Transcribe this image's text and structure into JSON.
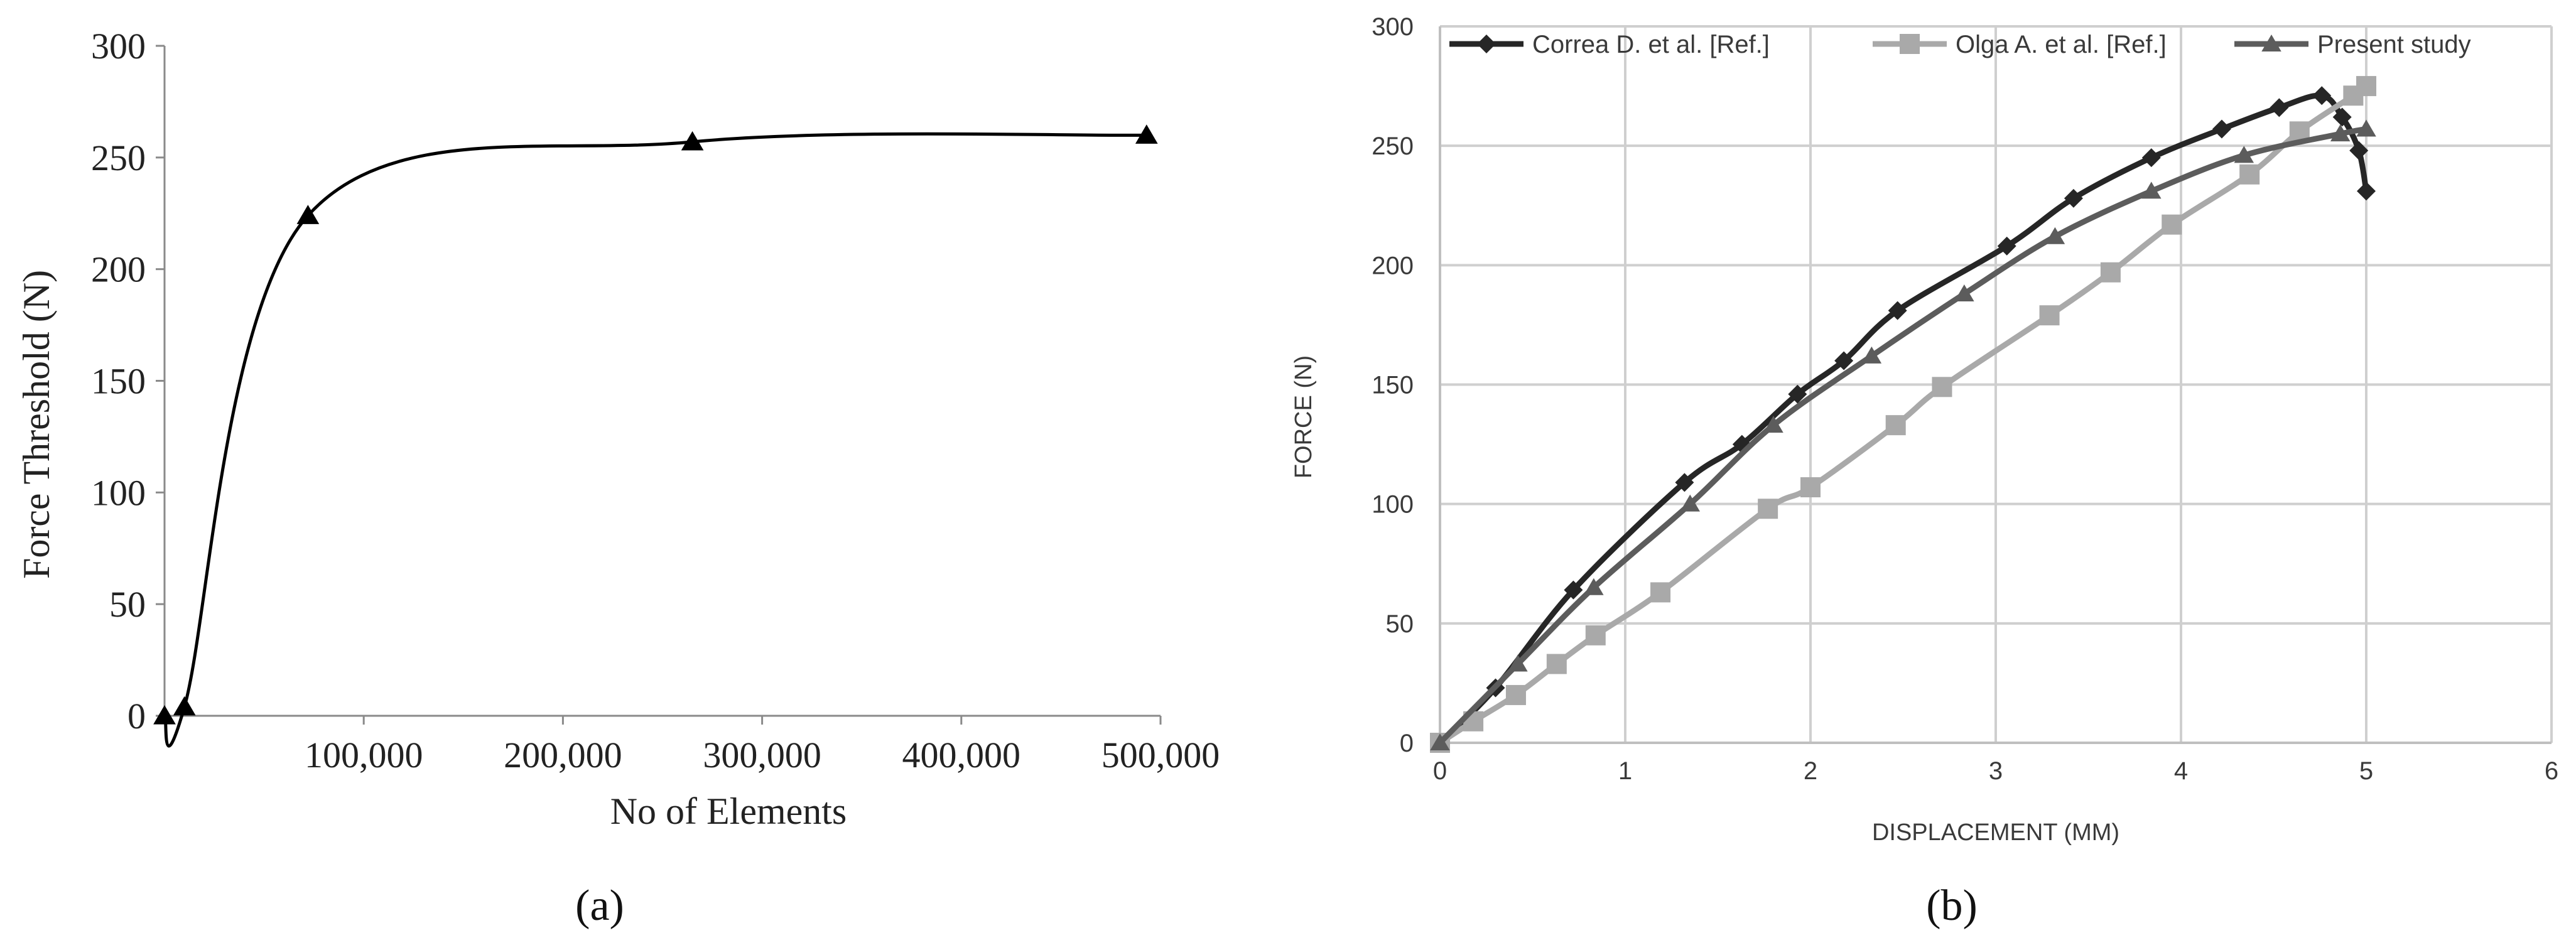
{
  "panel_labels": [
    "(a)",
    "(b)"
  ],
  "chart_data": [
    {
      "type": "line",
      "panel": "(a)",
      "title": "",
      "xlabel": "No of Elements",
      "ylabel": "Force Threshold (N)",
      "xlim": [
        0,
        500000
      ],
      "ylim": [
        0,
        300
      ],
      "xticks": [
        100000,
        200000,
        300000,
        400000,
        500000
      ],
      "xtick_labels": [
        "100,000",
        "200,000",
        "300,000",
        "400,000",
        "500,000"
      ],
      "yticks": [
        0,
        50,
        100,
        150,
        200,
        250,
        300
      ],
      "ytick_labels": [
        "0",
        "50",
        "100",
        "150",
        "200",
        "250",
        "300"
      ],
      "grid": false,
      "series": [
        {
          "marker": "triangle",
          "color": "#000000",
          "points": [
            [
              0,
              0
            ],
            [
              10000,
              4
            ],
            [
              72000,
              224
            ],
            [
              265000,
              257
            ],
            [
              493000,
              260
            ]
          ]
        }
      ]
    },
    {
      "type": "line",
      "panel": "(b)",
      "title": "",
      "xlabel": "DISPLACEMENT (MM)",
      "ylabel": "FORCE (N)",
      "xlim": [
        0,
        6
      ],
      "ylim": [
        0,
        300
      ],
      "xticks": [
        0,
        1,
        2,
        3,
        4,
        5,
        6
      ],
      "xtick_labels": [
        "0",
        "1",
        "2",
        "3",
        "4",
        "5",
        "6"
      ],
      "yticks": [
        0,
        50,
        100,
        150,
        200,
        250,
        300
      ],
      "ytick_labels": [
        "0",
        "50",
        "100",
        "150",
        "200",
        "250",
        "300"
      ],
      "grid": true,
      "legend": "top",
      "series": [
        {
          "name": "Correa D. et al. [Ref.]",
          "marker": "diamond",
          "color": "#262626",
          "points": [
            [
              0,
              0
            ],
            [
              0.3,
              23
            ],
            [
              0.72,
              64
            ],
            [
              1.32,
              109
            ],
            [
              1.63,
              125
            ],
            [
              1.93,
              146
            ],
            [
              2.18,
              160
            ],
            [
              2.47,
              181
            ],
            [
              3.06,
              208
            ],
            [
              3.42,
              228
            ],
            [
              3.84,
              245
            ],
            [
              4.22,
              257
            ],
            [
              4.53,
              266
            ],
            [
              4.76,
              271
            ],
            [
              4.87,
              262
            ],
            [
              4.96,
              248
            ],
            [
              5.0,
              231
            ]
          ]
        },
        {
          "name": "Olga A. et al. [Ref.]",
          "marker": "square",
          "color": "#a9a9a9",
          "points": [
            [
              0,
              0
            ],
            [
              0.18,
              9
            ],
            [
              0.41,
              20
            ],
            [
              0.63,
              33
            ],
            [
              0.84,
              45
            ],
            [
              1.19,
              63
            ],
            [
              1.77,
              98
            ],
            [
              2.0,
              107
            ],
            [
              2.46,
              133
            ],
            [
              2.71,
              149
            ],
            [
              3.29,
              179
            ],
            [
              3.62,
              197
            ],
            [
              3.95,
              217
            ],
            [
              4.37,
              238
            ],
            [
              4.64,
              256
            ],
            [
              4.93,
              271
            ],
            [
              5.0,
              275
            ]
          ]
        },
        {
          "name": "Present study",
          "marker": "triangle",
          "color": "#5c5c5c",
          "points": [
            [
              0,
              0
            ],
            [
              0.42,
              33
            ],
            [
              0.83,
              65
            ],
            [
              1.35,
              100
            ],
            [
              1.8,
              133
            ],
            [
              2.33,
              162
            ],
            [
              2.83,
              188
            ],
            [
              3.32,
              212
            ],
            [
              3.84,
              231
            ],
            [
              4.34,
              246
            ],
            [
              4.86,
              255
            ],
            [
              5.0,
              257
            ]
          ]
        }
      ]
    }
  ]
}
